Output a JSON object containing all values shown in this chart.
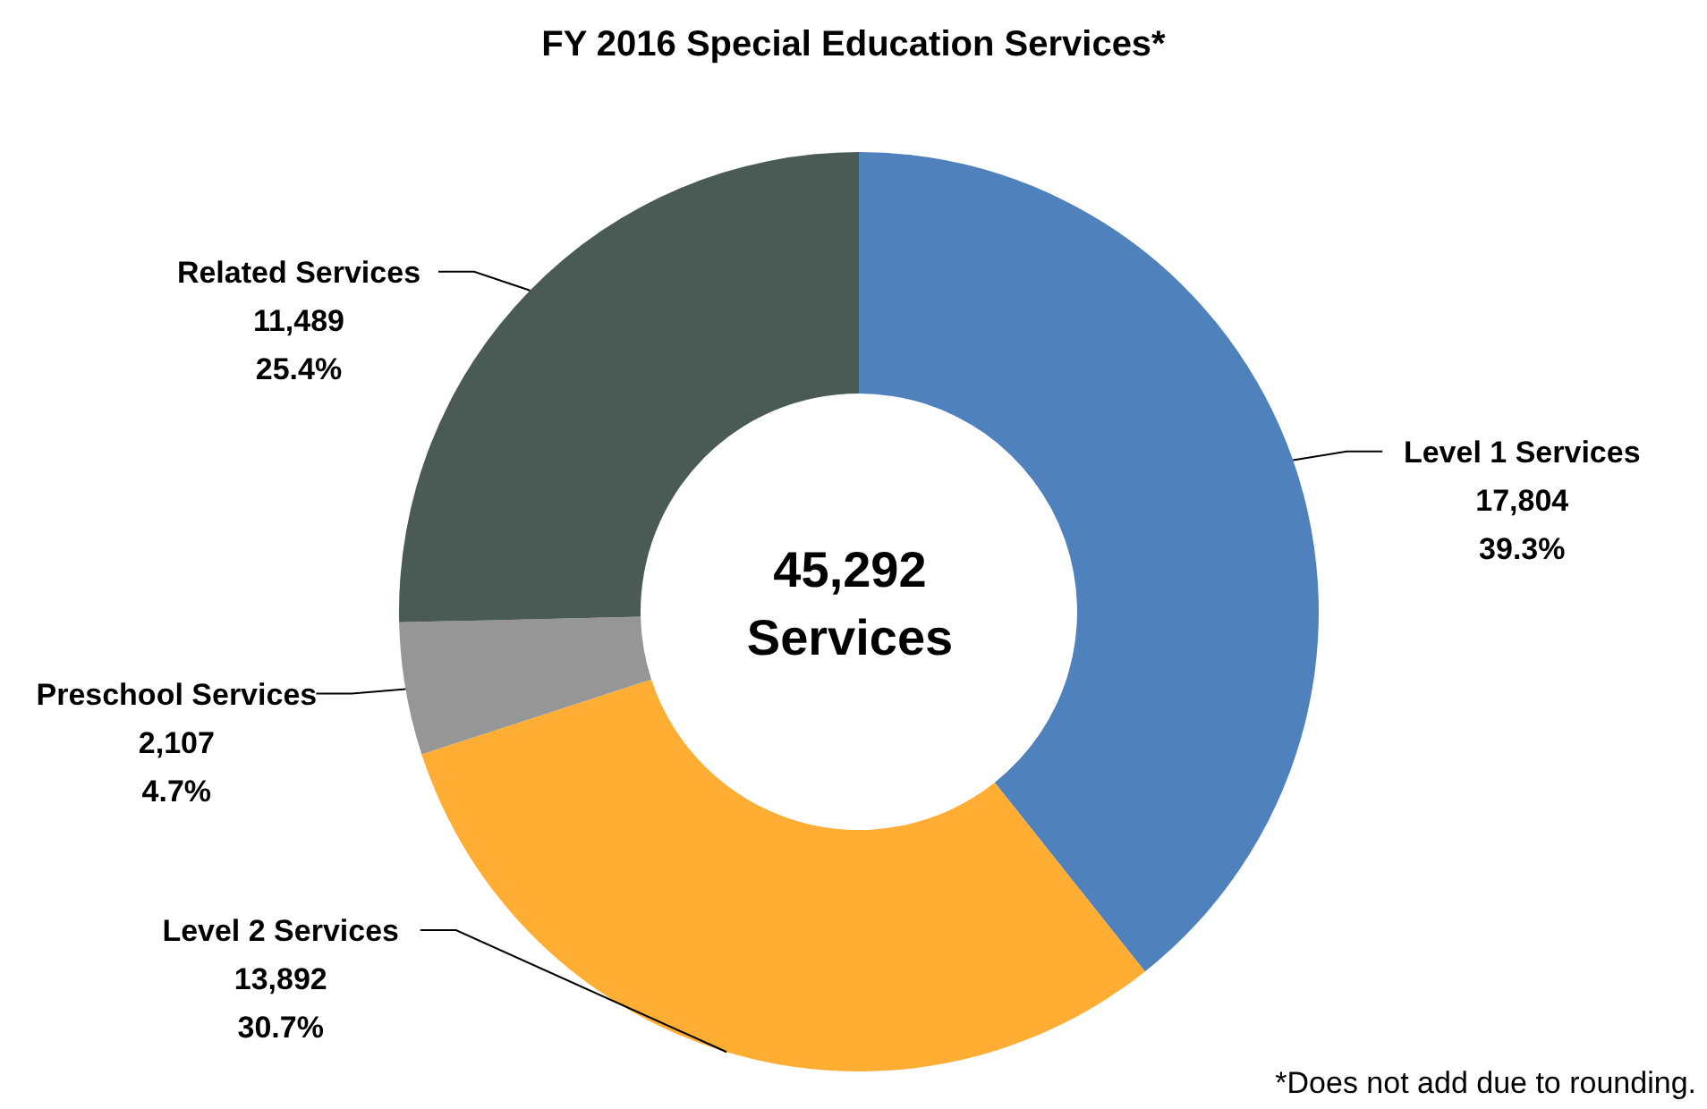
{
  "chart_data": {
    "type": "donut",
    "title": "FY 2016 Special Education Services*",
    "categories": [
      "Level 1 Services",
      "Level 2 Services",
      "Preschool Services",
      "Related Services"
    ],
    "values": [
      17804,
      13892,
      2107,
      11489
    ],
    "value_labels": [
      "17,804\n39.3%",
      "13,892\n30.7%",
      "2,107\n4.7%",
      "11,489\n25.4%"
    ],
    "colors": [
      "#4f81bd",
      "#ffad33",
      "#969696",
      "#4a5a54"
    ],
    "annotations": [
      "45,292",
      "Services",
      "*Does not add due to rounding."
    ],
    "legend": false
  }
}
